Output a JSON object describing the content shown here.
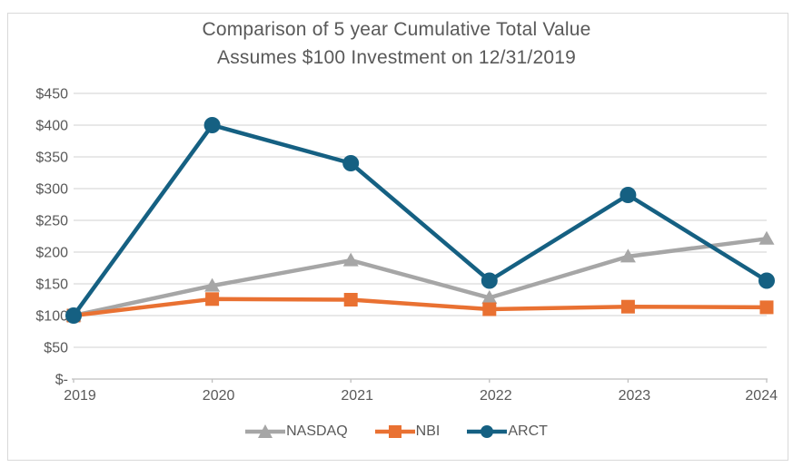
{
  "chart_data": {
    "type": "line",
    "title": "Comparison of 5 year Cumulative Total Value",
    "subtitle": "Assumes $100 Investment on 12/31/2019",
    "categories": [
      "2019",
      "2020",
      "2021",
      "2022",
      "2023",
      "2024"
    ],
    "series": [
      {
        "name": "NASDAQ",
        "color": "#A6A6A6",
        "marker": "triangle",
        "values": [
          100,
          147,
          187,
          128,
          193,
          221
        ]
      },
      {
        "name": "NBI",
        "color": "#E97132",
        "marker": "square",
        "values": [
          100,
          126,
          125,
          110,
          114,
          113
        ]
      },
      {
        "name": "ARCT",
        "color": "#156082",
        "marker": "circle",
        "values": [
          100,
          400,
          340,
          155,
          290,
          155
        ]
      }
    ],
    "ylim": [
      0,
      450
    ],
    "ytick_step": 50,
    "ytick_labels": [
      "$-",
      "$50",
      "$100",
      "$150",
      "$200",
      "$250",
      "$300",
      "$350",
      "$400",
      "$450"
    ],
    "grid": true,
    "legend_position": "bottom",
    "colors": {
      "text": "#595959",
      "gridline": "#D9D9D9",
      "axis_line": "#BFBFBF",
      "frame_border": "#D9D9D9",
      "background": "#FFFFFF"
    }
  }
}
